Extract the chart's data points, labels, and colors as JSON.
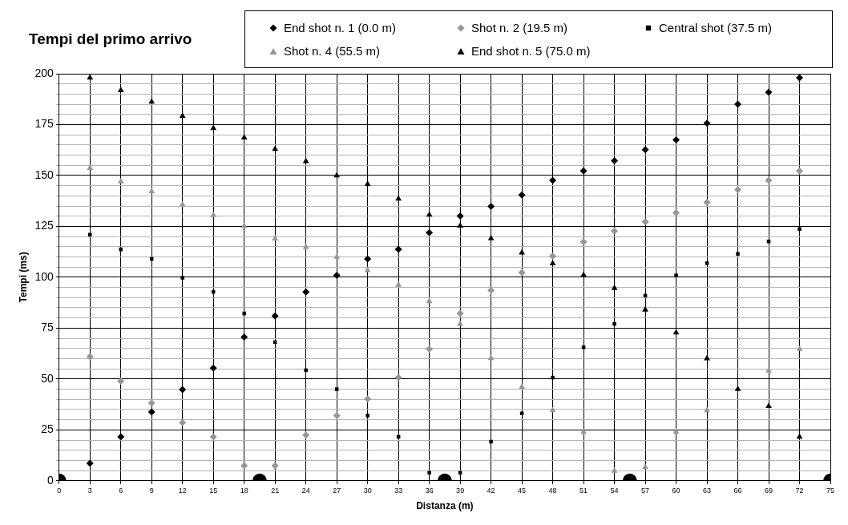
{
  "chart_data": {
    "type": "scatter",
    "title": "Tempi del primo arrivo",
    "xlabel": "Distanza (m)",
    "ylabel": "Tempi (ms)",
    "x": [
      3,
      6,
      9,
      12,
      15,
      18,
      21,
      24,
      27,
      30,
      33,
      36,
      39,
      42,
      45,
      48,
      51,
      54,
      57,
      60,
      63,
      66,
      69,
      72
    ],
    "series": [
      {
        "name": "End shot n. 1 (0.0 m)",
        "color": "#000000",
        "marker": "diamond",
        "values": [
          8.6,
          21.6,
          33.8,
          44.8,
          55.4,
          70.6,
          81,
          92.8,
          100.9,
          109,
          113.7,
          121.9,
          130.1,
          134.8,
          140.4,
          147.6,
          152.2,
          157.3,
          162.7,
          167.5,
          175.7,
          185,
          190.9,
          198
        ]
      },
      {
        "name": "Shot n. 2 (19.5 m)",
        "color": "#969696",
        "marker": "diamond",
        "values": [
          61,
          49,
          38.2,
          28.6,
          21.6,
          7.4,
          7.4,
          22.5,
          32,
          40.2,
          50.7,
          64.7,
          82.2,
          93.6,
          102.3,
          110.4,
          117.4,
          122.7,
          127.2,
          131.7,
          136.8,
          143,
          147.6,
          152.2
        ]
      },
      {
        "name": "Central shot (37.5 m)",
        "color": "#000000",
        "marker": "square",
        "values": [
          120.9,
          113.7,
          109,
          99.8,
          92.8,
          82.2,
          68.1,
          54.3,
          45,
          32,
          21.6,
          4,
          4,
          19.2,
          33.1,
          50.7,
          65.6,
          77.1,
          91,
          100.9,
          106.9,
          111.5,
          117.6,
          123.7
        ]
      },
      {
        "name": "Shot n. 4 (55.5 m)",
        "color": "#969696",
        "marker": "triangle",
        "values": [
          153.6,
          147,
          142.2,
          135.7,
          130.5,
          125.2,
          119,
          114.8,
          110,
          103.4,
          96.2,
          88.1,
          77,
          60.2,
          46.1,
          34.6,
          23.9,
          4.8,
          6.7,
          24,
          34.6,
          null,
          54.1,
          64.7
        ]
      },
      {
        "name": "End shot n. 5 (75.0 m)",
        "color": "#000000",
        "marker": "triangle",
        "values": [
          198,
          191.8,
          186.2,
          179.2,
          173.2,
          168.6,
          163,
          157,
          150,
          145.7,
          138.6,
          130.7,
          125.3,
          119.1,
          112.1,
          106.8,
          101,
          94.6,
          84,
          72.8,
          60.1,
          45,
          36.6,
          21.6
        ]
      },
      {
        "color": "#000000",
        "marker": "circle",
        "x": [
          0,
          19.5,
          37.5,
          55.5,
          75
        ],
        "values": [
          0,
          0,
          0,
          0,
          0
        ]
      }
    ],
    "xlim": [
      0,
      75
    ],
    "xticks": [
      0,
      3,
      6,
      9,
      12,
      15,
      18,
      21,
      24,
      27,
      30,
      33,
      36,
      39,
      42,
      45,
      48,
      51,
      54,
      57,
      60,
      63,
      66,
      69,
      72,
      75
    ],
    "ylim": [
      0,
      200
    ],
    "yticks": [
      0,
      {
        "value": 5,
        "label": null
      },
      {
        "value": 10,
        "label": null
      },
      {
        "value": 15,
        "label": null
      },
      {
        "value": 20,
        "label": null
      },
      25,
      {
        "value": 30,
        "label": null
      },
      {
        "value": 35,
        "label": null
      },
      {
        "value": 40,
        "label": null
      },
      {
        "value": 45,
        "label": null
      },
      50,
      {
        "value": 55,
        "label": null
      },
      {
        "value": 60,
        "label": null
      },
      {
        "value": 65,
        "label": null
      },
      {
        "value": 70,
        "label": null
      },
      75,
      {
        "value": 80,
        "label": null
      },
      {
        "value": 85,
        "label": null
      },
      {
        "value": 90,
        "label": null
      },
      {
        "value": 95,
        "label": null
      },
      100,
      {
        "value": 105,
        "label": null
      },
      {
        "value": 110,
        "label": null
      },
      {
        "value": 115,
        "label": null
      },
      {
        "value": 120,
        "label": null
      },
      125,
      {
        "value": 130,
        "label": null
      },
      {
        "value": 135,
        "label": null
      },
      {
        "value": 140,
        "label": null
      },
      {
        "value": 145,
        "label": null
      },
      150,
      {
        "value": 155,
        "label": null
      },
      {
        "value": 160,
        "label": null
      },
      {
        "value": 165,
        "label": null
      },
      {
        "value": 170,
        "label": null
      },
      175,
      {
        "value": 180,
        "label": null
      },
      {
        "value": 185,
        "label": null
      },
      {
        "value": 190,
        "label": null
      },
      {
        "value": 195,
        "label": null
      },
      200
    ],
    "grid": true,
    "legend": "top right"
  }
}
